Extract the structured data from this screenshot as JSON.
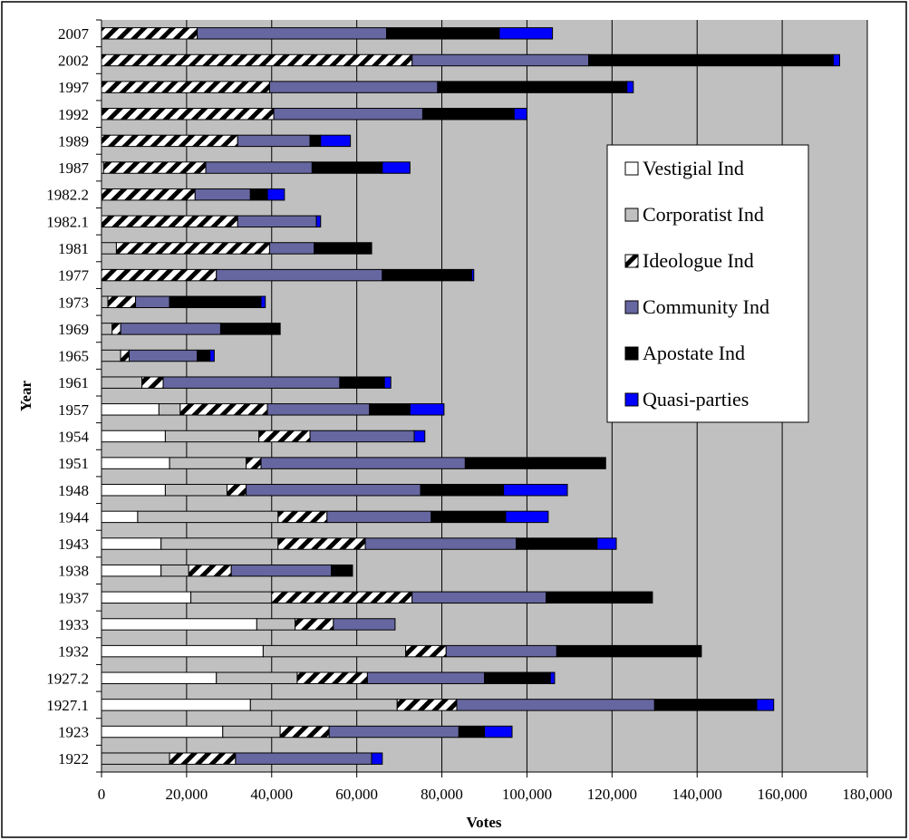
{
  "chart_data": {
    "type": "bar",
    "orientation": "horizontal",
    "stacked": true,
    "title": "",
    "xlabel": "Votes",
    "ylabel": "Year",
    "xlim": [
      0,
      180000
    ],
    "xticks": [
      0,
      20000,
      40000,
      60000,
      80000,
      100000,
      120000,
      140000,
      160000,
      180000
    ],
    "xtick_labels": [
      "0",
      "20,000",
      "40,000",
      "60,000",
      "80,000",
      "100,000",
      "120,000",
      "140,000",
      "160,000",
      "180,000"
    ],
    "grid": "vertical",
    "legend_position": "right",
    "categories": [
      "1922",
      "1923",
      "1927.1",
      "1927.2",
      "1932",
      "1933",
      "1937",
      "1938",
      "1943",
      "1944",
      "1948",
      "1951",
      "1954",
      "1957",
      "1961",
      "1965",
      "1969",
      "1973",
      "1977",
      "1981",
      "1982.1",
      "1982.2",
      "1987",
      "1989",
      "1992",
      "1997",
      "2002",
      "2007"
    ],
    "series": [
      {
        "name": "Vestigial Ind",
        "color": "#ffffff",
        "pattern": "solid",
        "values": [
          0,
          28500,
          35000,
          27000,
          38000,
          36500,
          21000,
          14000,
          14000,
          8500,
          15000,
          16000,
          15000,
          13500,
          0,
          0,
          0,
          0,
          0,
          0,
          0,
          0,
          500,
          0,
          0,
          0,
          0,
          0
        ]
      },
      {
        "name": "Corporatist Ind",
        "color": "#c0c0c0",
        "pattern": "solid",
        "values": [
          16000,
          13500,
          34500,
          19000,
          33500,
          9000,
          19000,
          6500,
          27500,
          33000,
          14500,
          18000,
          22000,
          5000,
          9500,
          4500,
          2500,
          1500,
          0,
          3500,
          0,
          0,
          0,
          0,
          0,
          0,
          0,
          0
        ]
      },
      {
        "name": "Ideologue Ind",
        "color": "#000000",
        "pattern": "hatch",
        "values": [
          15500,
          11500,
          14000,
          16500,
          9500,
          9000,
          33000,
          10000,
          20500,
          11500,
          4500,
          3500,
          12000,
          20500,
          5000,
          2000,
          2000,
          6500,
          27000,
          36000,
          32000,
          22000,
          24000,
          32000,
          40500,
          39500,
          73000,
          22500
        ]
      },
      {
        "name": "Community Ind",
        "color": "#6666a0",
        "pattern": "solid",
        "values": [
          32000,
          30500,
          46500,
          27500,
          26000,
          14500,
          31500,
          23500,
          35500,
          24500,
          41000,
          48000,
          24500,
          24000,
          41500,
          16000,
          23500,
          8000,
          39000,
          10500,
          18500,
          13000,
          25000,
          17000,
          35000,
          39500,
          41500,
          44500
        ]
      },
      {
        "name": "Apostate Ind",
        "color": "#000000",
        "pattern": "solid",
        "values": [
          0,
          6000,
          24000,
          15500,
          34000,
          0,
          25000,
          5000,
          19000,
          17500,
          19500,
          33000,
          0,
          9500,
          10500,
          3000,
          14000,
          21500,
          21000,
          13500,
          0,
          4000,
          16500,
          2500,
          21500,
          44500,
          57500,
          26500
        ]
      },
      {
        "name": "Quasi-parties",
        "color": "#0000ff",
        "pattern": "solid",
        "values": [
          2500,
          6500,
          4000,
          1000,
          0,
          0,
          0,
          0,
          4500,
          10000,
          15000,
          0,
          2500,
          8000,
          1500,
          1000,
          0,
          1000,
          500,
          0,
          1000,
          4000,
          6500,
          7000,
          3000,
          1500,
          1500,
          12500
        ]
      }
    ]
  }
}
